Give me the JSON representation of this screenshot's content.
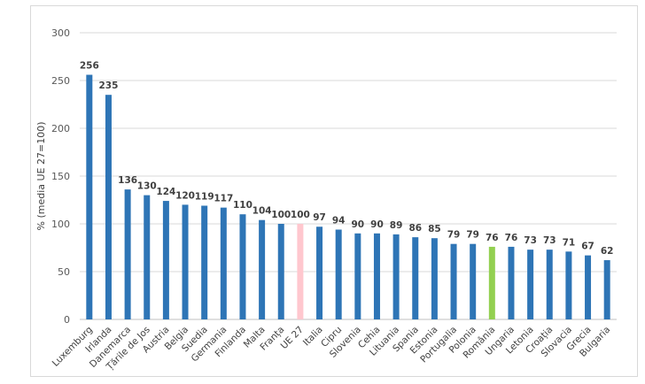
{
  "chart_data": {
    "type": "bar",
    "title": "",
    "xlabel": "",
    "ylabel": "% (media  UE 27=100)",
    "ylim": [
      0,
      300
    ],
    "yticks": [
      0,
      50,
      100,
      150,
      200,
      250,
      300
    ],
    "grid": true,
    "categories": [
      "Luxemburg",
      "Irlanda",
      "Danemarca",
      "Țările de Jos",
      "Austria",
      "Belgia",
      "Suedia",
      "Germania",
      "Finlanda",
      "Malta",
      "Franța",
      "UE 27",
      "Italia",
      "Cipru",
      "Slovenia",
      "Cehia",
      "Lituania",
      "Spania",
      "Estonia",
      "Portugalia",
      "Polonia",
      "România",
      "Ungaria",
      "Letonia",
      "Croația",
      "Slovacia",
      "Grecia",
      "Bulgaria"
    ],
    "values": [
      256,
      235,
      136,
      130,
      124,
      120,
      119,
      117,
      110,
      104,
      100,
      100,
      97,
      94,
      90,
      90,
      89,
      86,
      85,
      79,
      79,
      76,
      76,
      73,
      73,
      71,
      67,
      62
    ],
    "colors": {
      "default": "#2E75B6",
      "UE 27": "#FFC7CE",
      "România": "#92D050"
    }
  }
}
